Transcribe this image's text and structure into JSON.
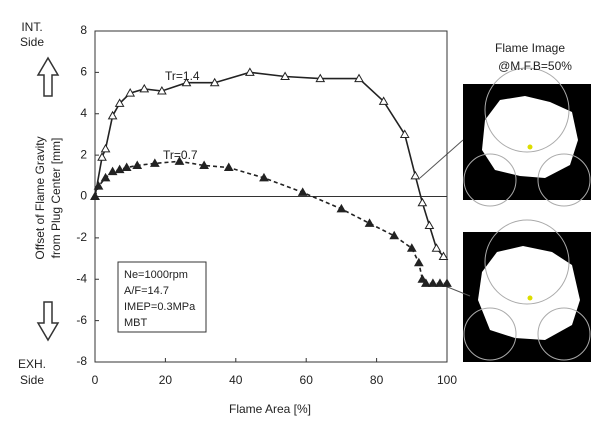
{
  "chart_data": {
    "type": "line",
    "xlabel": "Flame Area [%]",
    "ylabel": [
      "Offset of Flame Gravity",
      "from Plug Center [mm]"
    ],
    "top_side_label": [
      "INT.",
      "Side"
    ],
    "bottom_side_label": [
      "EXH.",
      "Side"
    ],
    "xlim": [
      0,
      100
    ],
    "xticks": [
      0,
      20,
      40,
      60,
      80,
      100
    ],
    "ylim": [
      -8,
      8
    ],
    "yticks": [
      -8,
      -6,
      -4,
      -2,
      0,
      2,
      4,
      6,
      8
    ],
    "zero_line": true,
    "notes": [
      "Ne=1000rpm",
      "A/F=14.7",
      "IMEP=0.3MPa",
      "MBT"
    ],
    "image_caption": [
      "Flame Image",
      "@M.F.B=50%"
    ],
    "series": [
      {
        "name": "Tr=1.4",
        "color": "#222222",
        "marker": "open-triangle",
        "dashed": false,
        "x": [
          0,
          2,
          3,
          5,
          7,
          10,
          14,
          19,
          26,
          34,
          44,
          54,
          64,
          75,
          82,
          88,
          91,
          93,
          95,
          97,
          99
        ],
        "values": [
          0,
          1.9,
          2.3,
          3.9,
          4.5,
          5,
          5.2,
          5.1,
          5.5,
          5.5,
          6,
          5.8,
          5.7,
          5.7,
          4.6,
          3,
          1,
          -0.3,
          -1.4,
          -2.5,
          -2.9
        ]
      },
      {
        "name": "Tr=0.7",
        "color": "#222222",
        "marker": "filled-triangle",
        "dashed": true,
        "x": [
          0,
          1,
          3,
          5,
          7,
          9,
          12,
          17,
          24,
          31,
          38,
          48,
          59,
          70,
          78,
          85,
          90,
          92,
          93,
          94,
          96,
          98,
          100
        ],
        "values": [
          0,
          0.5,
          0.9,
          1.2,
          1.3,
          1.4,
          1.5,
          1.6,
          1.7,
          1.5,
          1.4,
          0.9,
          0.2,
          -0.6,
          -1.3,
          -1.9,
          -2.5,
          -3.2,
          -4,
          -4.2,
          -4.2,
          -4.2,
          -4.2
        ]
      }
    ]
  }
}
